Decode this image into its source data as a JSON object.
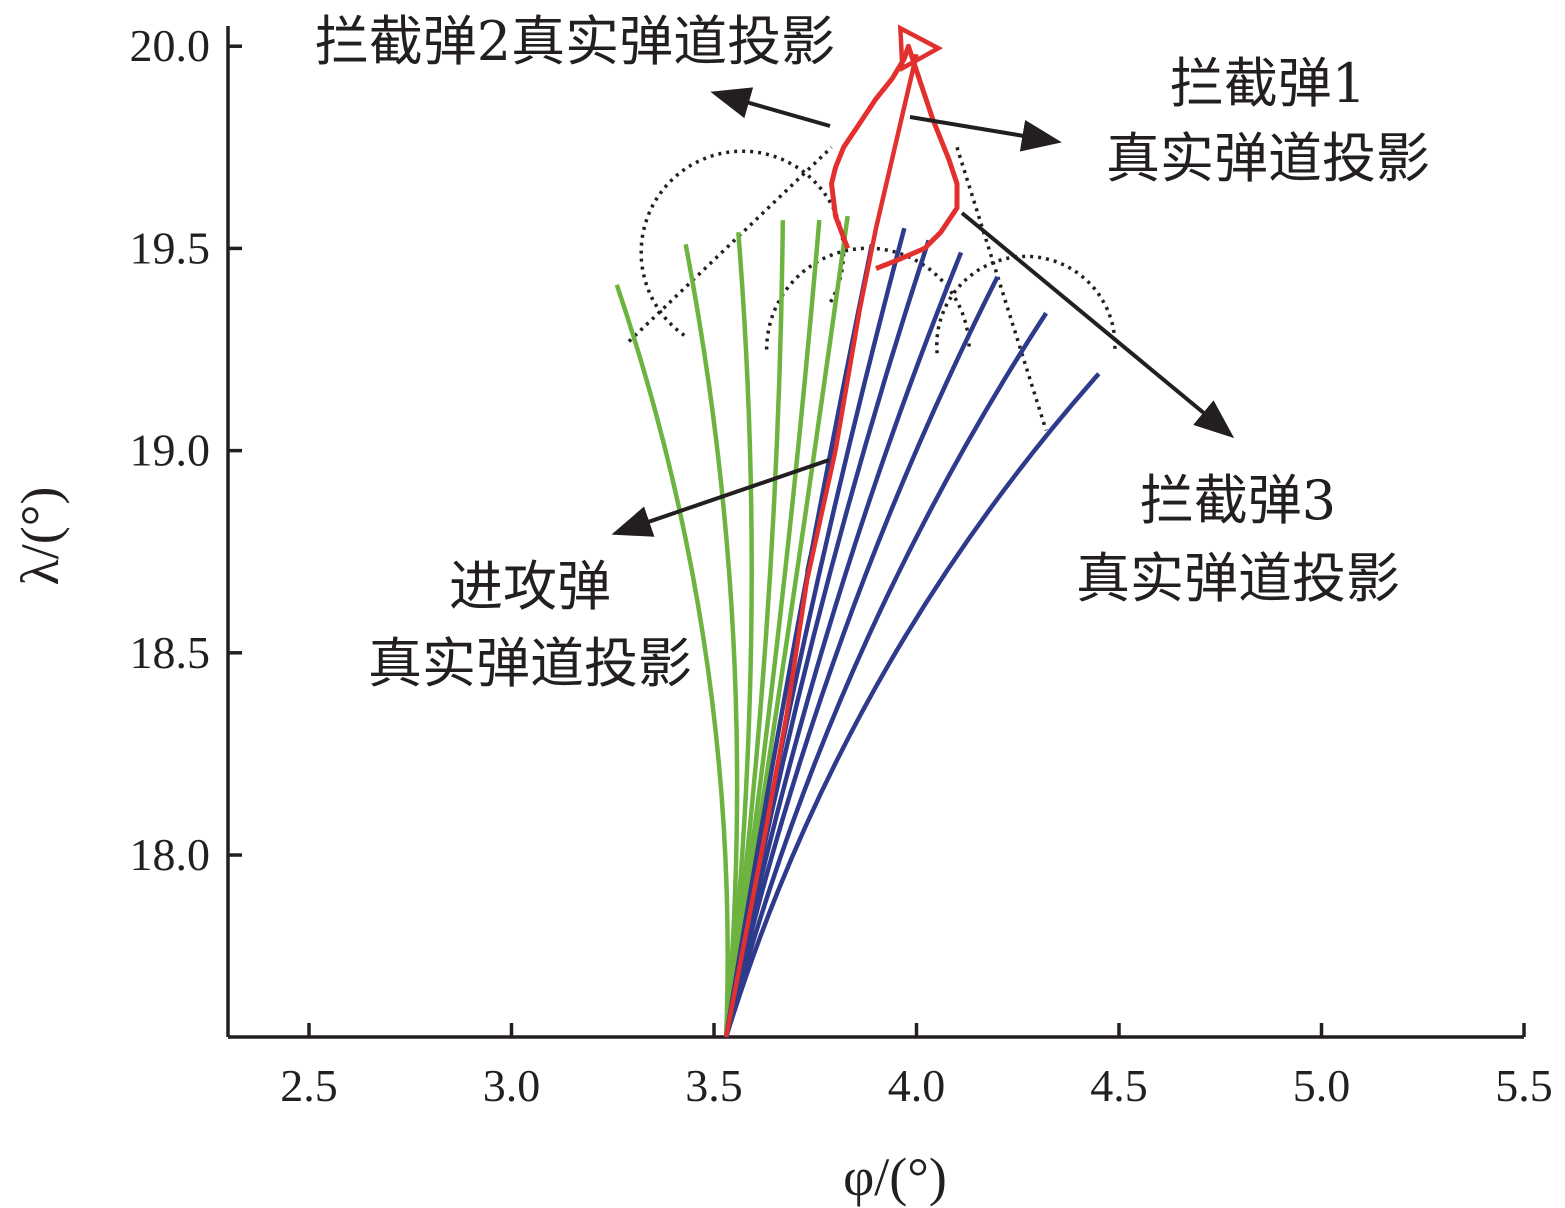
{
  "chart_data": {
    "type": "line",
    "title": "",
    "xlabel": "φ/(°)",
    "ylabel": "λ/(°)",
    "xlim": [
      2.3,
      5.5
    ],
    "ylim": [
      17.55,
      20.05
    ],
    "xticks": [
      "2.5",
      "3.0",
      "3.5",
      "4.0",
      "4.5",
      "5.0",
      "5.5"
    ],
    "yticks": [
      "18.0",
      "18.5",
      "19.0",
      "19.5",
      "20.0"
    ],
    "grid": false,
    "colors": {
      "interceptor2": "#6db33f",
      "interceptor3": "#2e3a8c",
      "attacker": "#e2302e",
      "interceptor1": "#e2302e",
      "reference": "#231f20",
      "axis": "#231f20"
    },
    "green_trajectory_ends": [
      [
        3.26,
        19.41
      ],
      [
        3.43,
        19.51
      ],
      [
        3.56,
        19.54
      ],
      [
        3.67,
        19.57
      ],
      [
        3.76,
        19.57
      ],
      [
        3.83,
        19.58
      ]
    ],
    "blue_trajectory_ends": [
      [
        3.89,
        19.51
      ],
      [
        3.97,
        19.55
      ],
      [
        4.03,
        19.52
      ],
      [
        4.11,
        19.49
      ],
      [
        4.2,
        19.43
      ],
      [
        4.32,
        19.34
      ],
      [
        4.45,
        19.19
      ]
    ],
    "common_start": [
      3.53,
      17.55
    ],
    "attacker_trajectory": [
      [
        3.53,
        17.55
      ],
      [
        3.62,
        18.02
      ],
      [
        3.68,
        18.35
      ],
      [
        3.73,
        18.68
      ],
      [
        3.8,
        19.0
      ],
      [
        3.86,
        19.35
      ],
      [
        3.9,
        19.55
      ],
      [
        4.0,
        19.98
      ]
    ],
    "attacker_marker": [
      3.97,
      20.0
    ],
    "interceptor1_loop": [
      [
        3.83,
        19.5
      ],
      [
        3.8,
        19.58
      ],
      [
        3.79,
        19.66
      ],
      [
        3.8,
        19.7
      ],
      [
        3.82,
        19.75
      ],
      [
        3.86,
        19.81
      ],
      [
        3.9,
        19.87
      ],
      [
        3.94,
        19.92
      ],
      [
        3.97,
        19.97
      ],
      [
        3.98,
        20.0
      ],
      [
        3.99,
        19.97
      ],
      [
        4.01,
        19.91
      ],
      [
        4.04,
        19.82
      ],
      [
        4.08,
        19.72
      ],
      [
        4.1,
        19.66
      ],
      [
        4.1,
        19.6
      ],
      [
        4.06,
        19.54
      ],
      [
        4.02,
        19.5
      ],
      [
        3.95,
        19.47
      ],
      [
        3.9,
        19.45
      ]
    ],
    "dotted_arcs": [
      {
        "center": [
          3.57,
          19.49
        ],
        "r": 0.25,
        "from": 125,
        "to": 390
      },
      {
        "center": [
          3.88,
          19.25
        ],
        "r": 0.25,
        "from": 180,
        "to": 360
      },
      {
        "center": [
          4.27,
          19.26
        ],
        "r": 0.22,
        "from": 175,
        "to": 365
      }
    ],
    "dotted_lines": [
      [
        [
          3.29,
          19.27
        ],
        [
          3.79,
          19.75
        ]
      ],
      [
        [
          4.1,
          19.75
        ],
        [
          4.32,
          19.05
        ]
      ]
    ],
    "dashed_line": [
      [
        3.73,
        18.7
      ],
      [
        3.9,
        19.55
      ]
    ],
    "annotations": [
      {
        "lines": [
          "拦截弹2真实弹道投影"
        ]
      },
      {
        "lines": [
          "拦截弹1",
          "真实弹道投影"
        ]
      },
      {
        "lines": [
          "拦截弹3",
          "真实弹道投影"
        ]
      },
      {
        "lines": [
          "进攻弹",
          "真实弹道投影"
        ]
      }
    ]
  }
}
